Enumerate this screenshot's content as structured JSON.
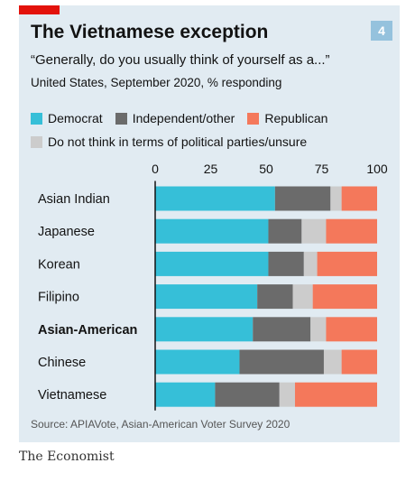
{
  "header": {
    "chart_number": "4",
    "title": "The Vietnamese exception",
    "subtitle": "“Generally, do you usually think of yourself as a...”",
    "description": "United States, September 2020, % responding"
  },
  "colors": {
    "accent": "#e3120b",
    "panel_background": "#e1ebf2",
    "Democrat": "#36bfd8",
    "Independent/other": "#6b6b6b",
    "Do not think in terms of political parties/unsure": "#cccccc",
    "Republican": "#f4785b"
  },
  "chart_data": {
    "type": "bar",
    "orientation": "horizontal",
    "stacked": true,
    "categories": [
      "Asian Indian",
      "Japanese",
      "Korean",
      "Filipino",
      "Asian-American",
      "Chinese",
      "Vietnamese"
    ],
    "highlight_category": "Asian-American",
    "series": [
      {
        "name": "Democrat",
        "values": [
          54,
          51,
          51,
          46,
          44,
          38,
          27
        ]
      },
      {
        "name": "Independent/other",
        "values": [
          25,
          15,
          16,
          16,
          26,
          38,
          29
        ]
      },
      {
        "name": "Do not think in terms of political parties/unsure",
        "values": [
          5,
          11,
          6,
          9,
          7,
          8,
          7
        ]
      },
      {
        "name": "Republican",
        "values": [
          16,
          23,
          27,
          29,
          23,
          16,
          37
        ]
      }
    ],
    "legend_rows": [
      [
        "Democrat",
        "Independent/other",
        "Republican"
      ],
      [
        "Do not think in terms of political parties/unsure"
      ]
    ],
    "x_ticks": [
      0,
      25,
      50,
      75,
      100
    ],
    "xlim": [
      0,
      100
    ],
    "axis_position": "top",
    "grid": false,
    "legend_position": "top"
  },
  "footer": {
    "source": "Source: APIAVote, Asian-American Voter Survey 2020",
    "publisher": "The Economist"
  }
}
